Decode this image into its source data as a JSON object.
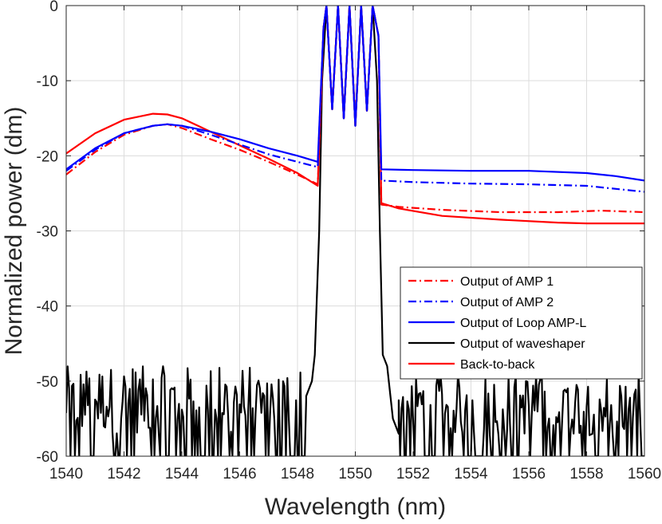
{
  "chart_data": {
    "type": "line",
    "title": "",
    "xlabel": "Wavelength (nm)",
    "ylabel": "Normalized power (dm)",
    "xlim": [
      1540,
      1560
    ],
    "ylim": [
      -60,
      0
    ],
    "xticks": [
      1540,
      1542,
      1544,
      1546,
      1548,
      1550,
      1552,
      1554,
      1556,
      1558,
      1560
    ],
    "xtick_labels": [
      "1540",
      "1542",
      "1544",
      "1546",
      "1548",
      "1550",
      "1552",
      "1554",
      "1556",
      "1558",
      "1560"
    ],
    "yticks": [
      0,
      -10,
      -20,
      -30,
      -40,
      -50,
      -60
    ],
    "ytick_labels": [
      "0",
      "-10",
      "-20",
      "-30",
      "-40",
      "-50",
      "-60"
    ],
    "grid": true,
    "legend_position": "bottom-right",
    "series": [
      {
        "name": "Output of AMP 1",
        "color": "#ff0000",
        "dash": "dashdot",
        "points": [
          [
            1540,
            -22.5
          ],
          [
            1541,
            -19.5
          ],
          [
            1542,
            -17.2
          ],
          [
            1543,
            -16
          ],
          [
            1543.5,
            -15.8
          ],
          [
            1544,
            -16.3
          ],
          [
            1545,
            -17.8
          ],
          [
            1546,
            -19.2
          ],
          [
            1547,
            -20.8
          ],
          [
            1548,
            -22.5
          ],
          [
            1548.7,
            -23.8
          ],
          [
            1548.9,
            -3
          ],
          [
            1549.0,
            0
          ],
          [
            1549.2,
            -13.8
          ],
          [
            1549.4,
            0
          ],
          [
            1549.6,
            -15
          ],
          [
            1549.8,
            0
          ],
          [
            1550.0,
            -15.5
          ],
          [
            1550.2,
            0
          ],
          [
            1550.4,
            -14
          ],
          [
            1550.6,
            0
          ],
          [
            1550.8,
            -4
          ],
          [
            1550.9,
            -26.5
          ],
          [
            1551.5,
            -26.8
          ],
          [
            1553,
            -27.2
          ],
          [
            1555,
            -27.5
          ],
          [
            1557,
            -27.5
          ],
          [
            1558.5,
            -27.3
          ],
          [
            1560,
            -27.5
          ]
        ]
      },
      {
        "name": "Output of AMP 2",
        "color": "#0000ff",
        "dash": "dashdot",
        "points": [
          [
            1540,
            -22
          ],
          [
            1541,
            -19.2
          ],
          [
            1542,
            -17
          ],
          [
            1543,
            -16
          ],
          [
            1543.5,
            -15.8
          ],
          [
            1544,
            -16
          ],
          [
            1545,
            -17.2
          ],
          [
            1546,
            -18.5
          ],
          [
            1547,
            -19.8
          ],
          [
            1548,
            -20.8
          ],
          [
            1548.7,
            -21.5
          ],
          [
            1548.9,
            -3
          ],
          [
            1549.0,
            0
          ],
          [
            1549.2,
            -13.8
          ],
          [
            1549.4,
            0
          ],
          [
            1549.6,
            -15
          ],
          [
            1549.8,
            0
          ],
          [
            1550.0,
            -16
          ],
          [
            1550.2,
            0
          ],
          [
            1550.4,
            -14
          ],
          [
            1550.6,
            0
          ],
          [
            1550.8,
            -4
          ],
          [
            1550.9,
            -23.3
          ],
          [
            1552,
            -23.5
          ],
          [
            1554,
            -23.7
          ],
          [
            1556,
            -23.8
          ],
          [
            1558,
            -24
          ],
          [
            1560,
            -24.8
          ]
        ]
      },
      {
        "name": "Output of Loop AMP-L",
        "color": "#0000ff",
        "dash": "solid",
        "points": [
          [
            1540,
            -21.8
          ],
          [
            1541,
            -19
          ],
          [
            1542,
            -17
          ],
          [
            1543,
            -16
          ],
          [
            1543.5,
            -15.8
          ],
          [
            1544,
            -16
          ],
          [
            1545,
            -16.8
          ],
          [
            1546,
            -17.8
          ],
          [
            1547,
            -19
          ],
          [
            1548,
            -20
          ],
          [
            1548.7,
            -20.8
          ],
          [
            1548.9,
            -3
          ],
          [
            1549.0,
            0
          ],
          [
            1549.2,
            -13.8
          ],
          [
            1549.4,
            0
          ],
          [
            1549.6,
            -15
          ],
          [
            1549.8,
            0
          ],
          [
            1550.0,
            -16
          ],
          [
            1550.2,
            0
          ],
          [
            1550.4,
            -14
          ],
          [
            1550.6,
            0
          ],
          [
            1550.8,
            -4
          ],
          [
            1550.9,
            -21.8
          ],
          [
            1552,
            -21.9
          ],
          [
            1554,
            -22
          ],
          [
            1556,
            -22
          ],
          [
            1558,
            -22.3
          ],
          [
            1559,
            -22.7
          ],
          [
            1560,
            -23.3
          ]
        ]
      },
      {
        "name": "Output of waveshaper",
        "color": "#000000",
        "dash": "solid",
        "noise": {
          "x_start": 1540,
          "x_end": 1548.3,
          "min": -60,
          "max": -48,
          "step": 0.05
        },
        "noise_right": {
          "x_start": 1551.5,
          "x_end": 1560,
          "min": -60,
          "max": -49,
          "step": 0.05
        },
        "points": [
          [
            1548.3,
            -52
          ],
          [
            1548.5,
            -50
          ],
          [
            1548.6,
            -46.5
          ],
          [
            1548.75,
            -30
          ],
          [
            1548.85,
            -10
          ],
          [
            1549.0,
            0
          ],
          [
            1549.2,
            -13.8
          ],
          [
            1549.4,
            0
          ],
          [
            1549.6,
            -15
          ],
          [
            1549.8,
            0
          ],
          [
            1550.0,
            -16
          ],
          [
            1550.2,
            0
          ],
          [
            1550.4,
            -14
          ],
          [
            1550.6,
            0
          ],
          [
            1550.75,
            -10
          ],
          [
            1550.85,
            -30
          ],
          [
            1550.95,
            -46.5
          ],
          [
            1551.1,
            -48
          ],
          [
            1551.3,
            -55
          ],
          [
            1551.5,
            -57
          ]
        ]
      },
      {
        "name": "Back-to-back",
        "color": "#ff0000",
        "dash": "solid",
        "points": [
          [
            1540,
            -19.7
          ],
          [
            1541,
            -17
          ],
          [
            1542,
            -15.2
          ],
          [
            1543,
            -14.4
          ],
          [
            1543.5,
            -14.5
          ],
          [
            1544,
            -15
          ],
          [
            1545,
            -16.8
          ],
          [
            1546,
            -18.6
          ],
          [
            1547,
            -20.4
          ],
          [
            1548,
            -22.3
          ],
          [
            1548.7,
            -24
          ],
          [
            1548.9,
            -3
          ],
          [
            1549.0,
            0
          ],
          [
            1549.2,
            -13.8
          ],
          [
            1549.4,
            0
          ],
          [
            1549.6,
            -15
          ],
          [
            1549.8,
            0
          ],
          [
            1550.0,
            -16
          ],
          [
            1550.2,
            0
          ],
          [
            1550.4,
            -14
          ],
          [
            1550.6,
            0
          ],
          [
            1550.8,
            -4
          ],
          [
            1550.9,
            -26.3
          ],
          [
            1551.5,
            -27
          ],
          [
            1553,
            -28
          ],
          [
            1555,
            -28.5
          ],
          [
            1557,
            -28.9
          ],
          [
            1558,
            -29
          ],
          [
            1560,
            -29
          ]
        ]
      }
    ]
  }
}
